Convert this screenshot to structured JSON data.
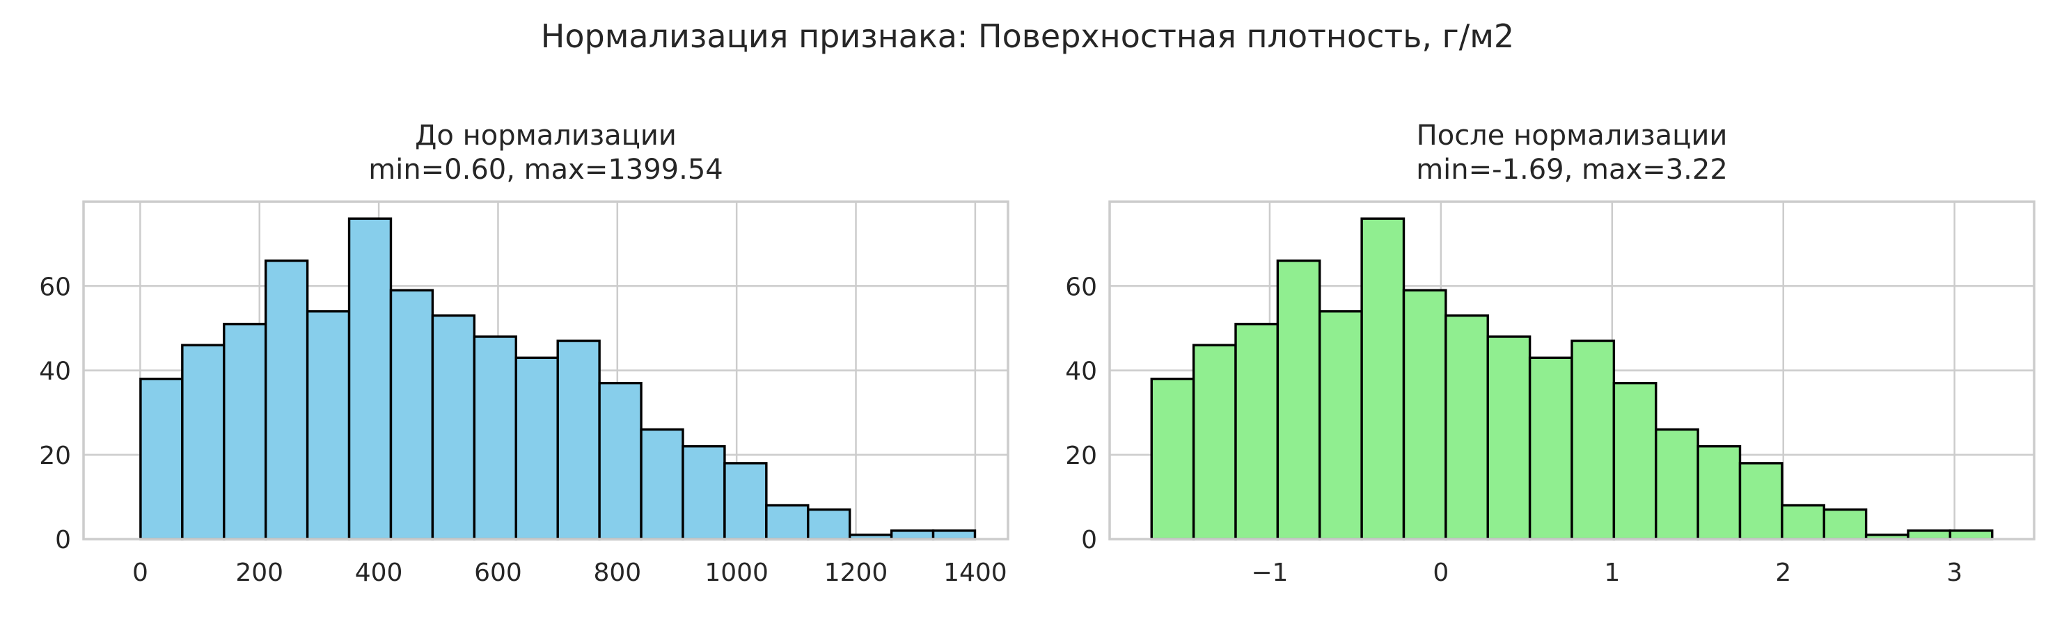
{
  "figure": {
    "suptitle": "Нормализация признака: Поверхностная плотность, г/м2"
  },
  "chart_data": [
    {
      "type": "bar",
      "subtype": "histogram",
      "title": "До нормализации\nmin=0.60, max=1399.54",
      "title_lines": [
        "До нормализации",
        "min=0.60, max=1399.54"
      ],
      "xlabel": "",
      "ylabel": "",
      "bar_color": "#87ceeb",
      "edge_color": "#000000",
      "bin_min": 0.6,
      "bin_max": 1399.54,
      "bin_count": 20,
      "values": [
        38,
        46,
        51,
        66,
        54,
        76,
        59,
        53,
        48,
        43,
        47,
        37,
        26,
        22,
        18,
        8,
        7,
        1,
        2,
        2
      ],
      "xlim": [
        -95,
        1455
      ],
      "ylim": [
        0,
        80
      ],
      "xticks": [
        0,
        200,
        400,
        600,
        800,
        1000,
        1200,
        1400
      ],
      "xtick_labels": [
        "0",
        "200",
        "400",
        "600",
        "800",
        "1000",
        "1200",
        "1400"
      ],
      "yticks": [
        0,
        20,
        40,
        60
      ],
      "ytick_labels": [
        "0",
        "20",
        "40",
        "60"
      ],
      "grid": true
    },
    {
      "type": "bar",
      "subtype": "histogram",
      "title": "После нормализации\nmin=-1.69, max=3.22",
      "title_lines": [
        "После нормализации",
        "min=-1.69, max=3.22"
      ],
      "xlabel": "",
      "ylabel": "",
      "bar_color": "#90ee90",
      "edge_color": "#000000",
      "bin_min": -1.69,
      "bin_max": 3.22,
      "bin_count": 20,
      "values": [
        38,
        46,
        51,
        66,
        54,
        76,
        59,
        53,
        48,
        43,
        47,
        37,
        26,
        22,
        18,
        8,
        7,
        1,
        2,
        2
      ],
      "xlim": [
        -1.935,
        3.465
      ],
      "ylim": [
        0,
        80
      ],
      "xticks": [
        -1,
        0,
        1,
        2,
        3
      ],
      "xtick_labels": [
        "−1",
        "0",
        "1",
        "2",
        "3"
      ],
      "yticks": [
        0,
        20,
        40,
        60
      ],
      "ytick_labels": [
        "0",
        "20",
        "40",
        "60"
      ],
      "grid": true
    }
  ]
}
